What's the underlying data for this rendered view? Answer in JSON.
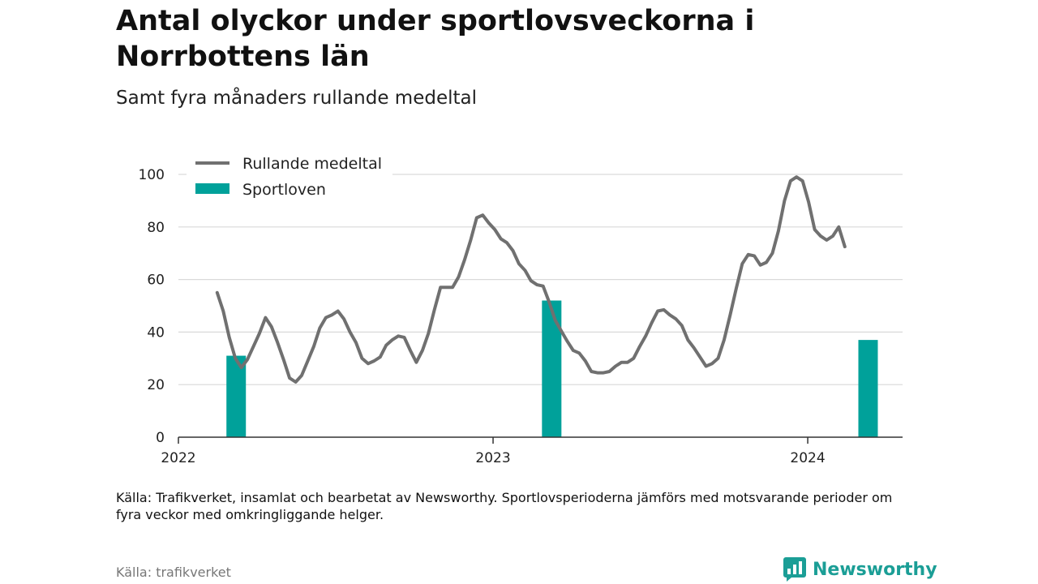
{
  "header": {
    "title": "Antal olyckor under sportlovsveckorna i Norrbottens län",
    "subtitle": "Samt fyra månaders rullande medeltal"
  },
  "footer": {
    "note": "Källa: Trafikverket, insamlat och bearbetat av Newsworthy. Sportlovsperioderna jämförs med motsvarande perioder om fyra veckor med omkringliggande helger.",
    "source": "Källa: trafikverket",
    "brand": "Newsworthy"
  },
  "colors": {
    "line": "#707070",
    "bar": "#00a19a",
    "grid": "#d9d9d9",
    "axis": "#333333",
    "brand": "#1b9e96"
  },
  "chart_data": {
    "type": "bar+line",
    "legend_placement": "top-left",
    "grid": true,
    "ylim": [
      0,
      100
    ],
    "yticks": [
      0,
      20,
      40,
      60,
      80,
      100
    ],
    "xlim": [
      "2022-01-01",
      "2024-04-20"
    ],
    "xticks": [
      {
        "date": "2022-01-01",
        "label": "2022"
      },
      {
        "date": "2023-01-01",
        "label": "2023"
      },
      {
        "date": "2024-01-01",
        "label": "2024"
      }
    ],
    "series": [
      {
        "name": "Rullande medeltal",
        "type": "line",
        "points": [
          [
            "2022-02-15",
            55
          ],
          [
            "2022-02-22",
            48
          ],
          [
            "2022-03-01",
            38
          ],
          [
            "2022-03-08",
            30
          ],
          [
            "2022-03-15",
            26.5
          ],
          [
            "2022-03-22",
            29.5
          ],
          [
            "2022-03-29",
            34.5
          ],
          [
            "2022-04-05",
            39.5
          ],
          [
            "2022-04-12",
            45.5
          ],
          [
            "2022-04-19",
            42
          ],
          [
            "2022-04-26",
            36
          ],
          [
            "2022-05-03",
            29.5
          ],
          [
            "2022-05-10",
            22.5
          ],
          [
            "2022-05-17",
            21
          ],
          [
            "2022-05-24",
            23.5
          ],
          [
            "2022-05-31",
            29
          ],
          [
            "2022-06-07",
            34.5
          ],
          [
            "2022-06-14",
            41.5
          ],
          [
            "2022-06-21",
            45.5
          ],
          [
            "2022-06-28",
            46.5
          ],
          [
            "2022-07-05",
            48
          ],
          [
            "2022-07-12",
            45
          ],
          [
            "2022-07-19",
            40
          ],
          [
            "2022-07-26",
            36
          ],
          [
            "2022-08-02",
            30
          ],
          [
            "2022-08-09",
            28
          ],
          [
            "2022-08-16",
            29
          ],
          [
            "2022-08-23",
            30.5
          ],
          [
            "2022-08-30",
            35
          ],
          [
            "2022-09-06",
            37
          ],
          [
            "2022-09-13",
            38.5
          ],
          [
            "2022-09-20",
            38
          ],
          [
            "2022-09-27",
            33
          ],
          [
            "2022-10-04",
            28.5
          ],
          [
            "2022-10-11",
            33
          ],
          [
            "2022-10-18",
            39.5
          ],
          [
            "2022-10-25",
            48.5
          ],
          [
            "2022-11-01",
            57
          ],
          [
            "2022-11-08",
            57
          ],
          [
            "2022-11-15",
            57
          ],
          [
            "2022-11-22",
            61
          ],
          [
            "2022-11-29",
            67.5
          ],
          [
            "2022-12-06",
            75
          ],
          [
            "2022-12-13",
            83.5
          ],
          [
            "2022-12-20",
            84.5
          ],
          [
            "2022-12-27",
            81.5
          ],
          [
            "2023-01-03",
            79
          ],
          [
            "2023-01-10",
            75.5
          ],
          [
            "2023-01-17",
            74
          ],
          [
            "2023-01-24",
            71
          ],
          [
            "2023-01-31",
            66
          ],
          [
            "2023-02-07",
            63.5
          ],
          [
            "2023-02-14",
            59.5
          ],
          [
            "2023-02-21",
            58
          ],
          [
            "2023-02-28",
            57.5
          ],
          [
            "2023-03-07",
            51.5
          ],
          [
            "2023-03-14",
            44.5
          ],
          [
            "2023-03-21",
            40.5
          ],
          [
            "2023-03-28",
            36.5
          ],
          [
            "2023-04-04",
            33
          ],
          [
            "2023-04-11",
            32
          ],
          [
            "2023-04-18",
            29
          ],
          [
            "2023-04-25",
            25
          ],
          [
            "2023-05-02",
            24.5
          ],
          [
            "2023-05-09",
            24.5
          ],
          [
            "2023-05-16",
            25
          ],
          [
            "2023-05-23",
            27
          ],
          [
            "2023-05-30",
            28.5
          ],
          [
            "2023-06-06",
            28.5
          ],
          [
            "2023-06-13",
            30
          ],
          [
            "2023-06-20",
            34.5
          ],
          [
            "2023-06-27",
            38.5
          ],
          [
            "2023-07-04",
            43.5
          ],
          [
            "2023-07-11",
            48
          ],
          [
            "2023-07-18",
            48.5
          ],
          [
            "2023-07-25",
            46.5
          ],
          [
            "2023-08-01",
            45
          ],
          [
            "2023-08-08",
            42.5
          ],
          [
            "2023-08-15",
            37
          ],
          [
            "2023-08-22",
            34
          ],
          [
            "2023-08-29",
            30.5
          ],
          [
            "2023-09-05",
            27
          ],
          [
            "2023-09-12",
            28
          ],
          [
            "2023-09-19",
            30
          ],
          [
            "2023-09-26",
            37
          ],
          [
            "2023-10-03",
            46.5
          ],
          [
            "2023-10-10",
            56.5
          ],
          [
            "2023-10-17",
            66
          ],
          [
            "2023-10-24",
            69.5
          ],
          [
            "2023-10-31",
            69
          ],
          [
            "2023-11-07",
            65.5
          ],
          [
            "2023-11-14",
            66.5
          ],
          [
            "2023-11-21",
            70
          ],
          [
            "2023-11-28",
            78.5
          ],
          [
            "2023-12-05",
            90
          ],
          [
            "2023-12-12",
            97.5
          ],
          [
            "2023-12-19",
            99
          ],
          [
            "2023-12-26",
            97.5
          ],
          [
            "2024-01-02",
            89.5
          ],
          [
            "2024-01-09",
            79
          ],
          [
            "2024-01-16",
            76.5
          ],
          [
            "2024-01-23",
            75
          ],
          [
            "2024-01-30",
            76.5
          ],
          [
            "2024-02-06",
            80
          ],
          [
            "2024-02-13",
            72.5
          ]
        ]
      },
      {
        "name": "Sportloven",
        "type": "bar",
        "points": [
          [
            "2022-03-09",
            31
          ],
          [
            "2023-03-10",
            52
          ],
          [
            "2024-03-11",
            37
          ]
        ]
      }
    ]
  }
}
